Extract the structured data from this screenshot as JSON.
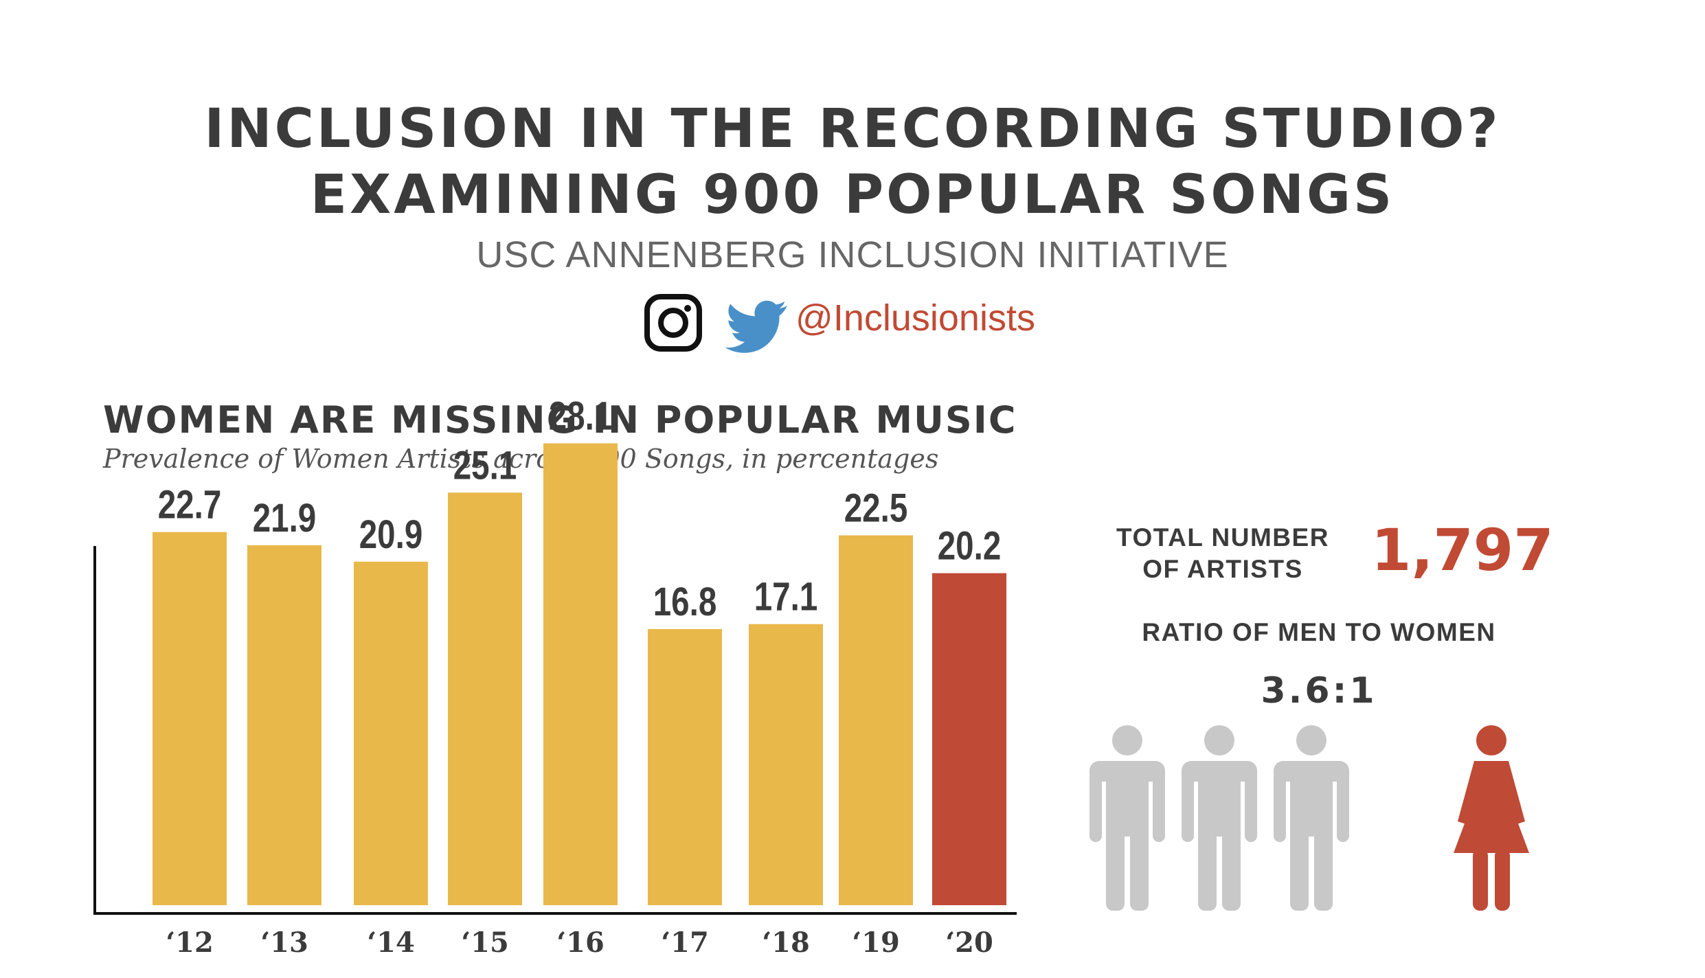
{
  "header": {
    "title_line1": "INCLUSION IN THE RECORDING STUDIO?",
    "title_line2": "EXAMINING 900 POPULAR SONGS",
    "subtitle": "USC ANNENBERG INCLUSION INITIATIVE",
    "handle": "@Inclusionists",
    "social_icons": [
      "instagram-icon",
      "twitter-icon"
    ]
  },
  "section": {
    "title": "WOMEN ARE MISSING IN POPULAR MUSIC",
    "subtitle": "Prevalence of Women Artists across 900 Songs, in percentages"
  },
  "chart_data": {
    "type": "bar",
    "title": "WOMEN ARE MISSING IN POPULAR MUSIC",
    "subtitle": "Prevalence of Women Artists across 900 Songs, in percentages",
    "categories": [
      "‘12",
      "‘13",
      "‘14",
      "‘15",
      "‘16",
      "‘17",
      "‘18",
      "‘19",
      "‘20"
    ],
    "values": [
      22.7,
      21.9,
      20.9,
      25.1,
      28.1,
      16.8,
      17.1,
      22.5,
      20.2
    ],
    "value_labels": [
      "22.7",
      "21.9",
      "20.9",
      "25.1",
      "28.1",
      "16.8",
      "17.1",
      "22.5",
      "20.2"
    ],
    "highlight_index": 8,
    "colors": {
      "bar": "#e9b84a",
      "highlight": "#bf4a35"
    },
    "ylim": [
      0,
      30
    ],
    "grid": false,
    "legend": "none"
  },
  "stats": {
    "total_label_line1": "TOTAL NUMBER",
    "total_label_line2": "OF ARTISTS",
    "total_value": "1,797",
    "ratio_label": "RATIO OF MEN TO WOMEN",
    "ratio_value": "3.6:1",
    "ratio_men": 3.6,
    "ratio_women": 1,
    "icons": [
      "man-icon",
      "woman-icon"
    ],
    "colors": {
      "men": "#c8c8c8",
      "women": "#bf4a35",
      "accent": "#c14a34"
    }
  }
}
